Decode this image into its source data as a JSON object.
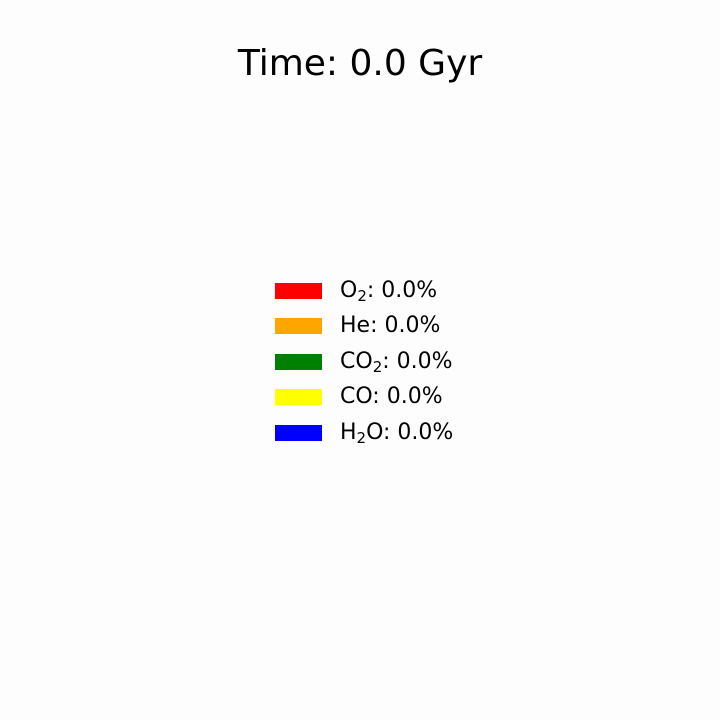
{
  "chart_data": {
    "type": "pie",
    "title": "Time: 0.0 Gyr",
    "legend_position": "center",
    "slices": [
      {
        "species": "O2",
        "label_main": "O",
        "label_sub": "2",
        "label_tail": ": 0.0%",
        "value": 0.0,
        "color": "#ff0000"
      },
      {
        "species": "He",
        "label_main": "He",
        "label_sub": "",
        "label_tail": ": 0.0%",
        "value": 0.0,
        "color": "#ffa500"
      },
      {
        "species": "CO2",
        "label_main": "CO",
        "label_sub": "2",
        "label_tail": ": 0.0%",
        "value": 0.0,
        "color": "#008000"
      },
      {
        "species": "CO",
        "label_main": "CO",
        "label_sub": "",
        "label_tail": ": 0.0%",
        "value": 0.0,
        "color": "#ffff00"
      },
      {
        "species": "H2O",
        "label_main": "H",
        "label_sub": "2",
        "label_tail": "O: 0.0%",
        "value": 0.0,
        "color": "#0000ff"
      }
    ]
  }
}
